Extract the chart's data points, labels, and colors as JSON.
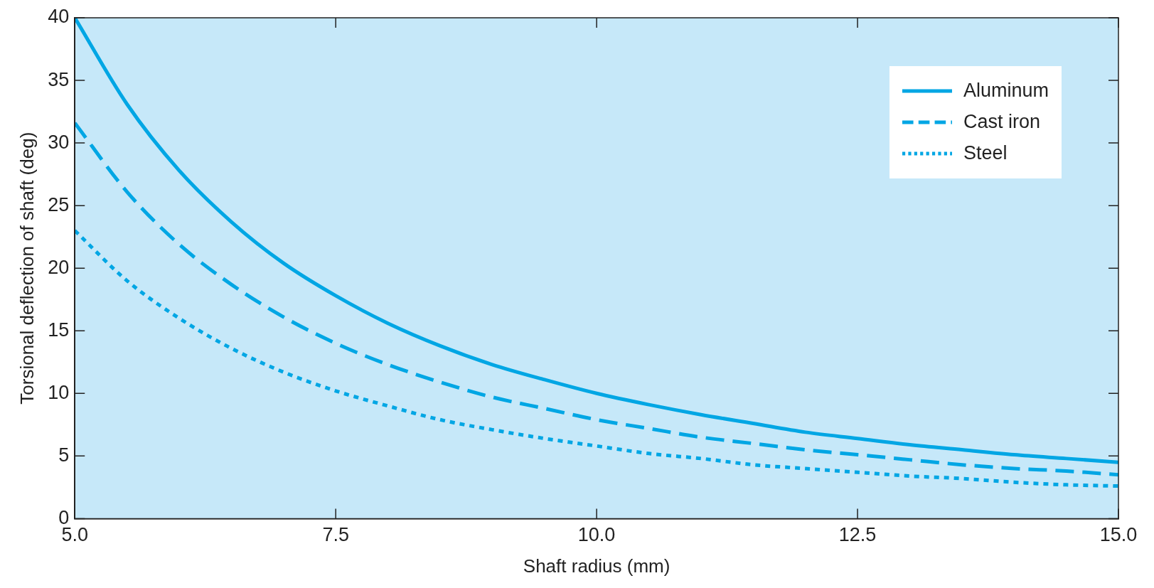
{
  "chart_data": {
    "type": "line",
    "xlabel": "Shaft radius (mm)",
    "ylabel": "Torsional deflection of shaft (deg)",
    "x": [
      5,
      5.5,
      6,
      6.5,
      7,
      7.5,
      8,
      8.5,
      9,
      9.5,
      10,
      10.5,
      11,
      11.5,
      12,
      12.5,
      13,
      13.5,
      14,
      14.5,
      15
    ],
    "series": [
      {
        "name": "Aluminum",
        "color": "#00a6e4",
        "line_style": "solid",
        "values": [
          40,
          33.1,
          27.8,
          23.7,
          20.4,
          17.8,
          15.6,
          13.8,
          12.3,
          11.1,
          10,
          9.1,
          8.3,
          7.6,
          6.9,
          6.4,
          5.9,
          5.5,
          5.1,
          4.8,
          4.5
        ]
      },
      {
        "name": "Cast iron",
        "color": "#00a6e4",
        "line_style": "dashed",
        "values": [
          31.6,
          26.1,
          21.9,
          18.7,
          16.1,
          14.0,
          12.3,
          10.9,
          9.7,
          8.8,
          7.9,
          7.2,
          6.5,
          6.0,
          5.5,
          5.1,
          4.7,
          4.3,
          4.0,
          3.8,
          3.5
        ]
      },
      {
        "name": "Steel",
        "color": "#00a6e4",
        "line_style": "dotted",
        "values": [
          23.0,
          19.0,
          16.0,
          13.6,
          11.7,
          10.2,
          9.0,
          7.9,
          7.1,
          6.4,
          5.8,
          5.2,
          4.8,
          4.3,
          4.0,
          3.7,
          3.4,
          3.2,
          2.9,
          2.7,
          2.6
        ]
      }
    ],
    "xlim": [
      5,
      15
    ],
    "xticks": [
      {
        "value": 5,
        "label": "5.0"
      },
      {
        "value": 7.5,
        "label": "7.5"
      },
      {
        "value": 10,
        "label": "10.0"
      },
      {
        "value": 12.5,
        "label": "12.5"
      },
      {
        "value": 15,
        "label": "15.0"
      }
    ],
    "ylim": [
      0,
      40
    ],
    "yticks": [
      0,
      5,
      10,
      15,
      20,
      25,
      30,
      35,
      40
    ],
    "grid": false,
    "legend": "top right",
    "marker": "none"
  }
}
